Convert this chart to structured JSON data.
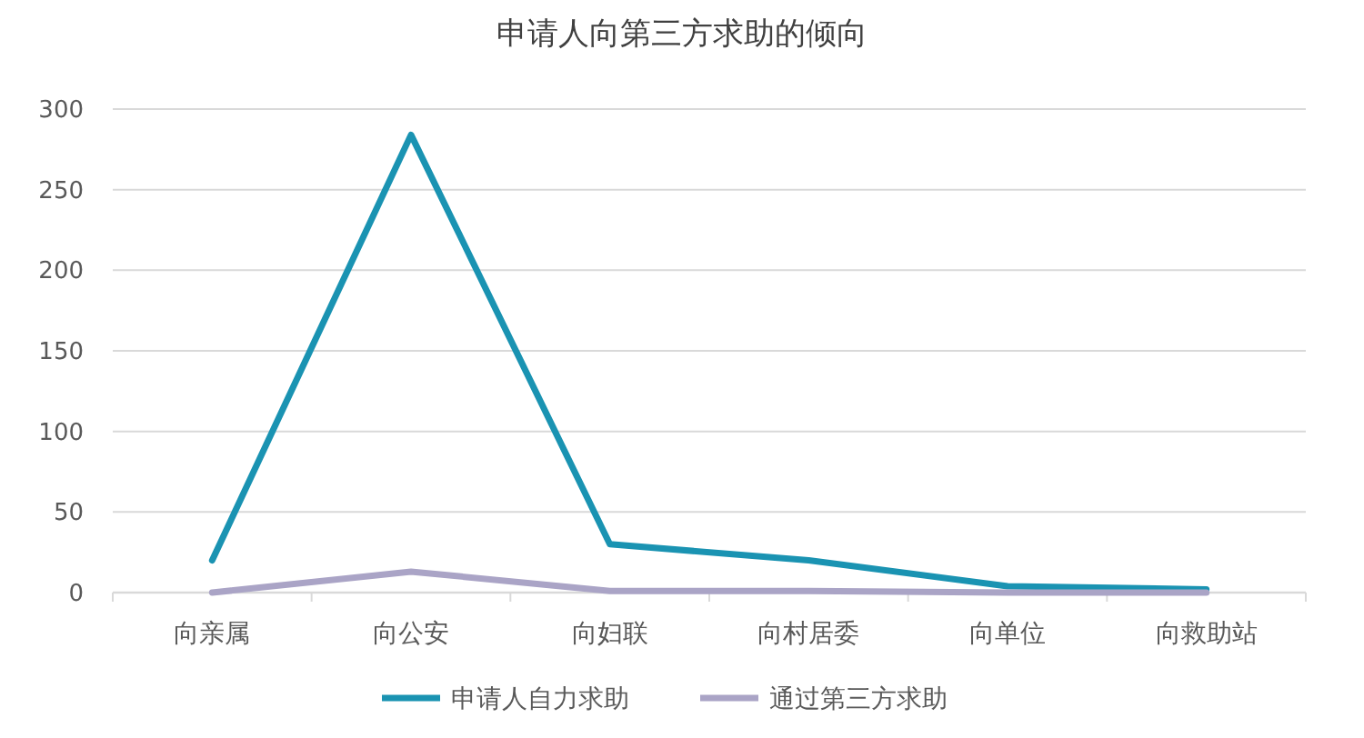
{
  "chart_data": {
    "type": "line",
    "title": "申请人向第三方求助的倾向",
    "categories": [
      "向亲属",
      "向公安",
      "向妇联",
      "向村居委",
      "向单位",
      "向救助站"
    ],
    "series": [
      {
        "name": "申请人自力求助",
        "color": "#1a93b2",
        "values": [
          20,
          284,
          30,
          20,
          4,
          2
        ]
      },
      {
        "name": "通过第三方求助",
        "color": "#aaa4c6",
        "values": [
          0,
          13,
          1,
          1,
          0,
          0
        ]
      }
    ],
    "ylim": [
      0,
      300
    ],
    "yticks": [
      0,
      50,
      100,
      150,
      200,
      250,
      300
    ],
    "grid": "y",
    "legend": "bottom",
    "marker": "none",
    "line_style": "solid"
  }
}
